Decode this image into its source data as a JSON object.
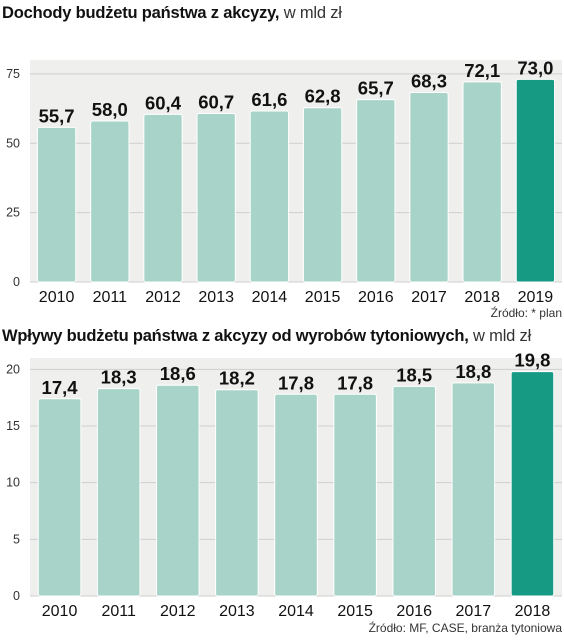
{
  "colors": {
    "bar": "#a7d3c8",
    "bar_highlight": "#169a83",
    "plot_bg": "#efefed",
    "gridline": "#cfcfcf"
  },
  "chart_data": [
    {
      "type": "bar",
      "title": "Dochody budżetu państwa z akcyzy,",
      "unit_label": "w mld zł",
      "categories": [
        "2010",
        "2011",
        "2012",
        "2013",
        "2014",
        "2015",
        "2016",
        "2017",
        "2018",
        "2019"
      ],
      "values": [
        55.7,
        58.0,
        60.4,
        60.7,
        61.6,
        62.8,
        65.7,
        68.3,
        72.1,
        73.0
      ],
      "value_labels": [
        "55,7",
        "58,0",
        "60,4",
        "60,7",
        "61,6",
        "62,8",
        "65,7",
        "68,3",
        "72,1",
        "73,0"
      ],
      "highlight_index": 9,
      "yticks": [
        0,
        25,
        50,
        75
      ],
      "ylim": [
        0,
        80
      ],
      "grid": true,
      "source": "Źródło: * plan"
    },
    {
      "type": "bar",
      "title": "Wpływy budżetu państwa z akcyzy od wyrobów tytoniowych,",
      "unit_label": "w mld zł",
      "categories": [
        "2010",
        "2011",
        "2012",
        "2013",
        "2014",
        "2015",
        "2016",
        "2017",
        "2018"
      ],
      "values": [
        17.4,
        18.3,
        18.6,
        18.2,
        17.8,
        17.8,
        18.5,
        18.8,
        19.8
      ],
      "value_labels": [
        "17,4",
        "18,3",
        "18,6",
        "18,2",
        "17,8",
        "17,8",
        "18,5",
        "18,8",
        "19,8"
      ],
      "highlight_index": 8,
      "yticks": [
        0,
        5,
        10,
        15,
        20
      ],
      "ylim": [
        0,
        21
      ],
      "grid": true,
      "source": "Źródło: MF, CASE, branża tytoniowa"
    }
  ]
}
